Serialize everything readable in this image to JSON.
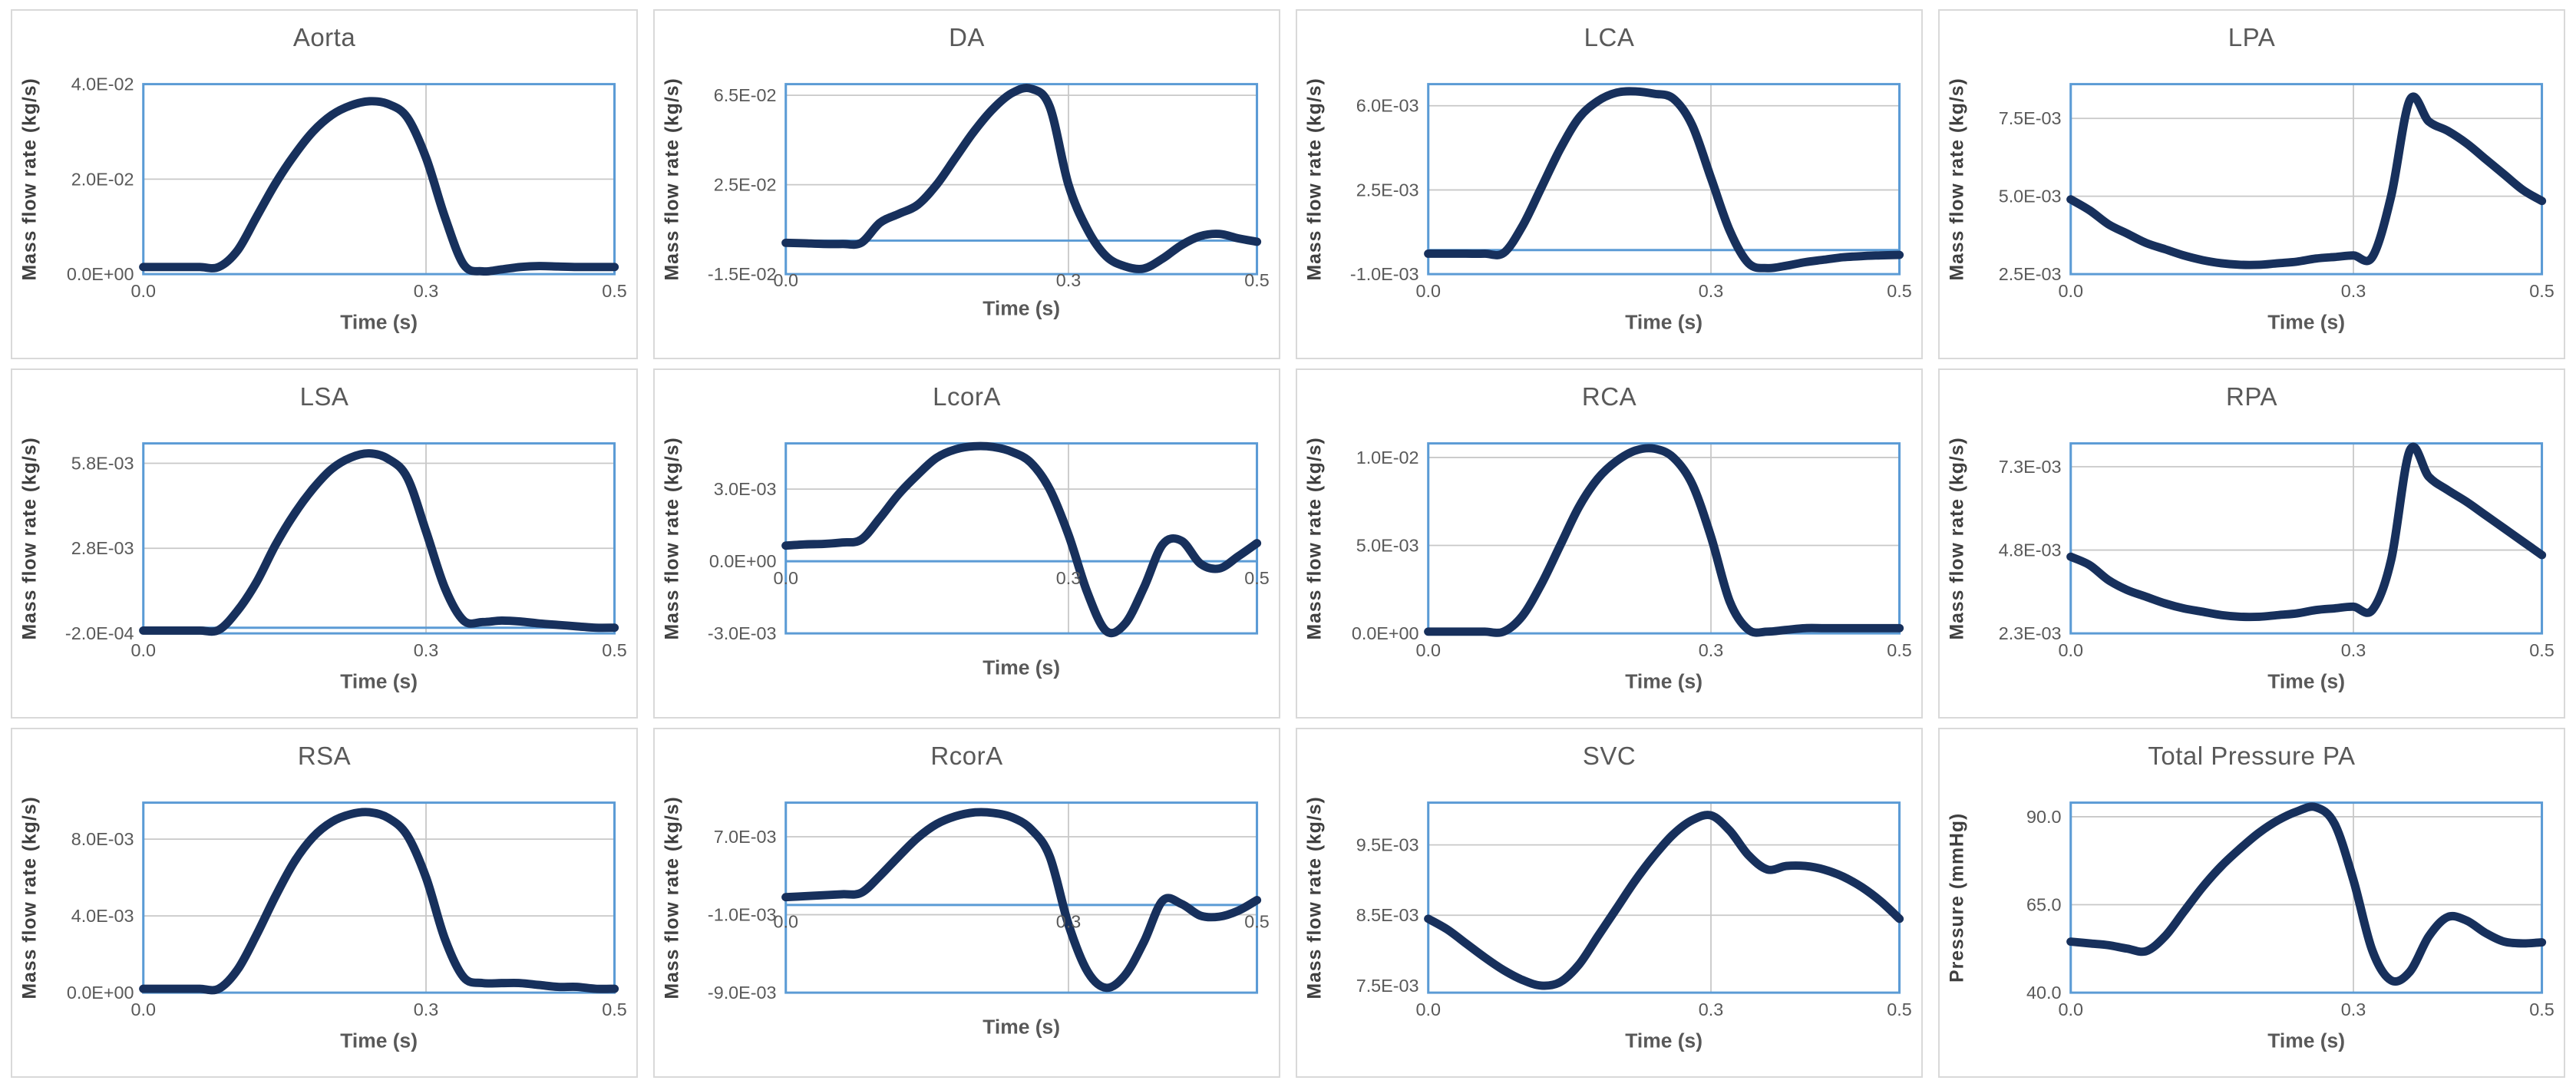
{
  "figure": {
    "description_visible_text_only": ""
  },
  "colors": {
    "curve": "#17305c",
    "axis_blue": "#5b9bd5",
    "gridline": "#c8c8c8",
    "tick_text": "#595959",
    "card_border": "#d9d9d9",
    "background": "#ffffff"
  },
  "chart_data": {
    "type": "line",
    "common_xlabel": "Time (s)",
    "common_x": [
      0,
      0.02,
      0.04,
      0.06,
      0.08,
      0.1,
      0.12,
      0.14,
      0.16,
      0.18,
      0.2,
      0.22,
      0.24,
      0.26,
      0.28,
      0.3,
      0.32,
      0.34,
      0.36,
      0.38,
      0.4,
      0.42,
      0.44,
      0.46,
      0.48,
      0.5
    ],
    "xlim": [
      0,
      0.5
    ],
    "x_gridline": 0.3,
    "legend": "none",
    "charts": [
      {
        "id": "aorta",
        "title": "Aorta",
        "ylabel": "Mass flow rate (kg/s)",
        "xlabel": "Time (s)",
        "ylim": [
          0,
          0.04
        ],
        "zero_axis": false,
        "xtick_placement": "below",
        "yticks": [
          {
            "value": 0.04,
            "label": "4.0E-02"
          },
          {
            "value": 0.02,
            "label": "2.0E-02"
          },
          {
            "value": 0.0,
            "label": "0.0E+00"
          }
        ],
        "grid_y": [
          0.02
        ],
        "xticks": [
          {
            "value": 0.0,
            "label": "0.0"
          },
          {
            "value": 0.3,
            "label": "0.3"
          },
          {
            "value": 0.5,
            "label": "0.5"
          }
        ],
        "y": [
          0.0015,
          0.0015,
          0.0015,
          0.0015,
          0.0015,
          0.005,
          0.012,
          0.019,
          0.025,
          0.03,
          0.0335,
          0.0355,
          0.0364,
          0.0358,
          0.033,
          0.0245,
          0.012,
          0.002,
          0.0006,
          0.001,
          0.0015,
          0.0017,
          0.0016,
          0.0015,
          0.0015,
          0.0015
        ]
      },
      {
        "id": "da",
        "title": "DA",
        "ylabel": "Mass flow rate (kg/s)",
        "xlabel": "Time (s)",
        "ylim": [
          -0.015,
          0.07
        ],
        "zero_axis": true,
        "xtick_placement": "edge",
        "yticks": [
          {
            "value": 0.065,
            "label": "6.5E-02"
          },
          {
            "value": 0.025,
            "label": "2.5E-02"
          },
          {
            "value": -0.015,
            "label": "-1.5E-02"
          }
        ],
        "grid_y": [
          0.065,
          0.025
        ],
        "xticks": [
          {
            "value": 0.0,
            "label": "0.0"
          },
          {
            "value": 0.3,
            "label": "0.3"
          },
          {
            "value": 0.5,
            "label": "0.5"
          }
        ],
        "y": [
          -0.001,
          -0.0012,
          -0.0015,
          -0.0015,
          -0.001,
          0.008,
          0.012,
          0.016,
          0.025,
          0.037,
          0.049,
          0.059,
          0.066,
          0.068,
          0.06,
          0.025,
          0.005,
          -0.007,
          -0.0115,
          -0.0125,
          -0.008,
          -0.002,
          0.002,
          0.003,
          0.001,
          -0.0005
        ]
      },
      {
        "id": "lca",
        "title": "LCA",
        "ylabel": "Mass flow rate (kg/s)",
        "xlabel": "Time (s)",
        "ylim": [
          -0.001,
          0.0069
        ],
        "zero_axis": true,
        "xtick_placement": "below",
        "yticks": [
          {
            "value": 0.006,
            "label": "6.0E-03"
          },
          {
            "value": 0.0025,
            "label": "2.5E-03"
          },
          {
            "value": -0.001,
            "label": "-1.0E-03"
          }
        ],
        "grid_y": [
          0.006,
          0.0025
        ],
        "xticks": [
          {
            "value": 0.0,
            "label": "0.0"
          },
          {
            "value": 0.3,
            "label": "0.3"
          },
          {
            "value": 0.5,
            "label": "0.5"
          }
        ],
        "y": [
          -0.00015,
          -0.00015,
          -0.00015,
          -0.00015,
          -0.00012,
          0.001,
          0.0026,
          0.0042,
          0.0055,
          0.0062,
          0.00655,
          0.0066,
          0.0065,
          0.0063,
          0.0052,
          0.003,
          0.0008,
          -0.00055,
          -0.00075,
          -0.00065,
          -0.0005,
          -0.0004,
          -0.0003,
          -0.00025,
          -0.00022,
          -0.0002
        ]
      },
      {
        "id": "lpa",
        "title": "LPA",
        "ylabel": "Mass flow rate (kg/s)",
        "xlabel": "Time (s)",
        "ylim": [
          0.0025,
          0.0086
        ],
        "zero_axis": false,
        "xtick_placement": "below",
        "yticks": [
          {
            "value": 0.0075,
            "label": "7.5E-03"
          },
          {
            "value": 0.005,
            "label": "5.0E-03"
          },
          {
            "value": 0.0025,
            "label": "2.5E-03"
          }
        ],
        "grid_y": [
          0.0075,
          0.005
        ],
        "xticks": [
          {
            "value": 0.0,
            "label": "0.0"
          },
          {
            "value": 0.3,
            "label": "0.3"
          },
          {
            "value": 0.5,
            "label": "0.5"
          }
        ],
        "y": [
          0.0049,
          0.00455,
          0.0041,
          0.0038,
          0.0035,
          0.0033,
          0.0031,
          0.00295,
          0.00285,
          0.0028,
          0.0028,
          0.00285,
          0.0029,
          0.003,
          0.00305,
          0.0031,
          0.00305,
          0.005,
          0.0081,
          0.0074,
          0.0071,
          0.0067,
          0.0062,
          0.0057,
          0.0052,
          0.00485
        ]
      },
      {
        "id": "lsa",
        "title": "LSA",
        "ylabel": "Mass flow rate (kg/s)",
        "xlabel": "Time (s)",
        "ylim": [
          -0.0002,
          0.0065
        ],
        "zero_axis": true,
        "xtick_placement": "below",
        "yticks": [
          {
            "value": 0.0058,
            "label": "5.8E-03"
          },
          {
            "value": 0.0028,
            "label": "2.8E-03"
          },
          {
            "value": -0.0002,
            "label": "-2.0E-04"
          }
        ],
        "grid_y": [
          0.0058,
          0.0028
        ],
        "xticks": [
          {
            "value": 0.0,
            "label": "0.0"
          },
          {
            "value": 0.3,
            "label": "0.3"
          },
          {
            "value": 0.5,
            "label": "0.5"
          }
        ],
        "y": [
          -0.0001,
          -0.0001,
          -0.0001,
          -0.0001,
          -8e-05,
          0.0006,
          0.0016,
          0.0029,
          0.004,
          0.0049,
          0.0056,
          0.006,
          0.00615,
          0.00595,
          0.0053,
          0.0034,
          0.0014,
          0.00025,
          0.0002,
          0.00025,
          0.00022,
          0.00015,
          0.0001,
          5e-05,
          0,
          0
        ]
      },
      {
        "id": "lcora",
        "title": "LcorA",
        "ylabel": "Mass flow rate (kg/s)",
        "xlabel": "Time (s)",
        "ylim": [
          -0.003,
          0.0049
        ],
        "zero_axis": true,
        "xtick_placement": "axis",
        "yticks": [
          {
            "value": 0.003,
            "label": "3.0E-03"
          },
          {
            "value": 0.0,
            "label": "0.0E+00"
          },
          {
            "value": -0.003,
            "label": "-3.0E-03"
          }
        ],
        "grid_y": [
          0.003
        ],
        "xticks": [
          {
            "value": 0.0,
            "label": "0.0"
          },
          {
            "value": 0.3,
            "label": "0.3"
          },
          {
            "value": 0.5,
            "label": "0.5"
          }
        ],
        "y": [
          0.00065,
          0.0007,
          0.00072,
          0.00078,
          0.0009,
          0.0018,
          0.0028,
          0.0036,
          0.0043,
          0.00465,
          0.00478,
          0.00475,
          0.00455,
          0.0041,
          0.003,
          0.0011,
          -0.0013,
          -0.0029,
          -0.0026,
          -0.0011,
          0.0007,
          0.00085,
          -0.0001,
          -0.0003,
          0.0002,
          0.00075
        ]
      },
      {
        "id": "rca",
        "title": "RCA",
        "ylabel": "Mass flow rate (kg/s)",
        "xlabel": "Time (s)",
        "ylim": [
          0,
          0.0108
        ],
        "zero_axis": false,
        "xtick_placement": "below",
        "yticks": [
          {
            "value": 0.01,
            "label": "1.0E-02"
          },
          {
            "value": 0.005,
            "label": "5.0E-03"
          },
          {
            "value": 0.0,
            "label": "0.0E+00"
          }
        ],
        "grid_y": [
          0.01,
          0.005
        ],
        "xticks": [
          {
            "value": 0.0,
            "label": "0.0"
          },
          {
            "value": 0.3,
            "label": "0.3"
          },
          {
            "value": 0.5,
            "label": "0.5"
          }
        ],
        "y": [
          0.0001,
          0.0001,
          0.0001,
          0.0001,
          0.0001,
          0.001,
          0.0028,
          0.005,
          0.0072,
          0.0088,
          0.0098,
          0.0104,
          0.0105,
          0.01,
          0.0085,
          0.0055,
          0.0018,
          0.0002,
          0.0001,
          0.0002,
          0.0003,
          0.0003,
          0.0003,
          0.0003,
          0.0003,
          0.0003
        ]
      },
      {
        "id": "rpa",
        "title": "RPA",
        "ylabel": "Mass flow rate (kg/s)",
        "xlabel": "Time (s)",
        "ylim": [
          0.0023,
          0.008
        ],
        "zero_axis": false,
        "xtick_placement": "below",
        "yticks": [
          {
            "value": 0.0073,
            "label": "7.3E-03"
          },
          {
            "value": 0.0048,
            "label": "4.8E-03"
          },
          {
            "value": 0.0023,
            "label": "2.3E-03"
          }
        ],
        "grid_y": [
          0.0073,
          0.0048
        ],
        "xticks": [
          {
            "value": 0.0,
            "label": "0.0"
          },
          {
            "value": 0.3,
            "label": "0.3"
          },
          {
            "value": 0.5,
            "label": "0.5"
          }
        ],
        "y": [
          0.0046,
          0.00435,
          0.0039,
          0.0036,
          0.0034,
          0.0032,
          0.00305,
          0.00295,
          0.00285,
          0.0028,
          0.0028,
          0.00285,
          0.0029,
          0.003,
          0.00305,
          0.0031,
          0.003,
          0.0045,
          0.0078,
          0.007,
          0.0066,
          0.00625,
          0.00585,
          0.00545,
          0.00505,
          0.00465
        ]
      },
      {
        "id": "rsa",
        "title": "RSA",
        "ylabel": "Mass flow rate (kg/s)",
        "xlabel": "Time (s)",
        "ylim": [
          0,
          0.0099
        ],
        "zero_axis": false,
        "xtick_placement": "below",
        "yticks": [
          {
            "value": 0.008,
            "label": "8.0E-03"
          },
          {
            "value": 0.004,
            "label": "4.0E-03"
          },
          {
            "value": 0.0,
            "label": "0.0E+00"
          }
        ],
        "grid_y": [
          0.008,
          0.004
        ],
        "xticks": [
          {
            "value": 0.0,
            "label": "0.0"
          },
          {
            "value": 0.3,
            "label": "0.3"
          },
          {
            "value": 0.5,
            "label": "0.5"
          }
        ],
        "y": [
          0.0002,
          0.0002,
          0.0002,
          0.0002,
          0.0002,
          0.0012,
          0.003,
          0.005,
          0.0068,
          0.0081,
          0.0089,
          0.0093,
          0.0094,
          0.0091,
          0.0082,
          0.006,
          0.0028,
          0.0008,
          0.0005,
          0.0005,
          0.0005,
          0.0004,
          0.0003,
          0.0003,
          0.0002,
          0.0002
        ]
      },
      {
        "id": "rcora",
        "title": "RcorA",
        "ylabel": "Mass flow rate (kg/s)",
        "xlabel": "Time (s)",
        "ylim": [
          -0.009,
          0.0105
        ],
        "zero_axis": true,
        "xtick_placement": "axis",
        "yticks": [
          {
            "value": 0.007,
            "label": "7.0E-03"
          },
          {
            "value": -0.001,
            "label": "-1.0E-03"
          },
          {
            "value": -0.009,
            "label": "-9.0E-03"
          }
        ],
        "grid_y": [
          0.007,
          -0.001
        ],
        "xticks": [
          {
            "value": 0.0,
            "label": "0.0"
          },
          {
            "value": 0.3,
            "label": "0.3"
          },
          {
            "value": 0.5,
            "label": "0.5"
          }
        ],
        "y": [
          0.0008,
          0.0009,
          0.001,
          0.0011,
          0.00125,
          0.003,
          0.005,
          0.0069,
          0.0083,
          0.0091,
          0.0095,
          0.00945,
          0.009,
          0.0078,
          0.005,
          -0.002,
          -0.0068,
          -0.0085,
          -0.0072,
          -0.0038,
          0.00045,
          0.0001,
          -0.0011,
          -0.0012,
          -0.0006,
          0.0005
        ]
      },
      {
        "id": "svc",
        "title": "SVC",
        "ylabel": "Mass flow rate (kg/s)",
        "xlabel": "Time (s)",
        "ylim": [
          0.0074,
          0.0101
        ],
        "zero_axis": false,
        "xtick_placement": "below",
        "yticks": [
          {
            "value": 0.0095,
            "label": "9.5E-03"
          },
          {
            "value": 0.0085,
            "label": "8.5E-03"
          },
          {
            "value": 0.0075,
            "label": "7.5E-03"
          }
        ],
        "grid_y": [
          0.0095,
          0.0085
        ],
        "xticks": [
          {
            "value": 0.0,
            "label": "0.0"
          },
          {
            "value": 0.3,
            "label": "0.3"
          },
          {
            "value": 0.5,
            "label": "0.5"
          }
        ],
        "y": [
          0.00845,
          0.0083,
          0.0081,
          0.0079,
          0.00772,
          0.00758,
          0.0075,
          0.00755,
          0.0078,
          0.0082,
          0.0086,
          0.009,
          0.00935,
          0.00965,
          0.00985,
          0.00992,
          0.0097,
          0.00935,
          0.00915,
          0.0092,
          0.0092,
          0.00915,
          0.00905,
          0.0089,
          0.0087,
          0.00845
        ]
      },
      {
        "id": "total-pressure-pa",
        "title": "Total Pressure PA",
        "ylabel": "Pressure (mmHg)",
        "xlabel": "Time (s)",
        "ylim": [
          40,
          94
        ],
        "zero_axis": false,
        "xtick_placement": "below",
        "yticks": [
          {
            "value": 90,
            "label": "90.0"
          },
          {
            "value": 65,
            "label": "65.0"
          },
          {
            "value": 40,
            "label": "40.0"
          }
        ],
        "grid_y": [
          90,
          65
        ],
        "xticks": [
          {
            "value": 0.0,
            "label": "0.0"
          },
          {
            "value": 0.3,
            "label": "0.3"
          },
          {
            "value": 0.5,
            "label": "0.5"
          }
        ],
        "y": [
          54.5,
          54,
          53.5,
          52.5,
          51.8,
          56,
          63,
          70,
          76,
          81,
          85.5,
          89,
          91.5,
          92.7,
          88,
          72,
          52,
          43.5,
          46,
          56,
          61.5,
          60.5,
          57,
          54.5,
          54,
          54.3
        ]
      }
    ]
  }
}
